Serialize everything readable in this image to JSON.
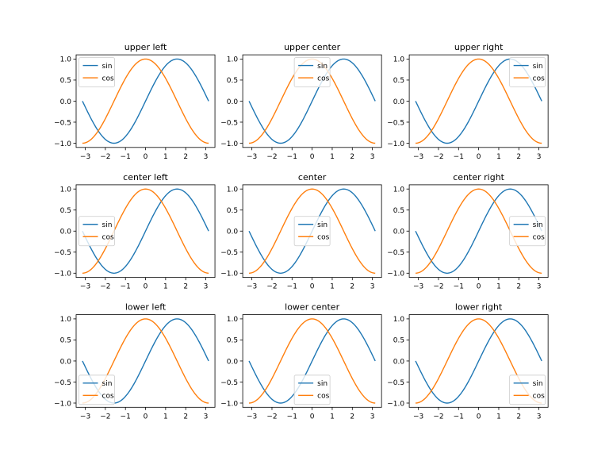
{
  "chart_data": [
    {
      "type": "line",
      "title": "upper left",
      "legend_loc": "upper left"
    },
    {
      "type": "line",
      "title": "upper center",
      "legend_loc": "upper center"
    },
    {
      "type": "line",
      "title": "upper right",
      "legend_loc": "upper right"
    },
    {
      "type": "line",
      "title": "center left",
      "legend_loc": "center left"
    },
    {
      "type": "line",
      "title": "center",
      "legend_loc": "center"
    },
    {
      "type": "line",
      "title": "center right",
      "legend_loc": "center right"
    },
    {
      "type": "line",
      "title": "lower left",
      "legend_loc": "lower left"
    },
    {
      "type": "line",
      "title": "lower center",
      "legend_loc": "lower center"
    },
    {
      "type": "line",
      "title": "lower right",
      "legend_loc": "lower right"
    }
  ],
  "shared": {
    "x_range": [
      -3.14159,
      3.14159
    ],
    "xlim": [
      -3.456,
      3.456
    ],
    "ylim": [
      -1.1,
      1.1
    ],
    "xticks": [
      -3,
      -2,
      -1,
      0,
      1,
      2,
      3
    ],
    "xtick_labels": [
      "−3",
      "−2",
      "−1",
      "0",
      "1",
      "2",
      "3"
    ],
    "yticks": [
      -1.0,
      -0.5,
      0.0,
      0.5,
      1.0
    ],
    "ytick_labels": [
      "−1.0",
      "−0.5",
      "0.0",
      "0.5",
      "1.0"
    ],
    "grid": false,
    "series": [
      {
        "name": "sin",
        "function": "sin(x)",
        "color": "#1f77b4"
      },
      {
        "name": "cos",
        "function": "cos(x)",
        "color": "#ff7f0e"
      }
    ]
  }
}
